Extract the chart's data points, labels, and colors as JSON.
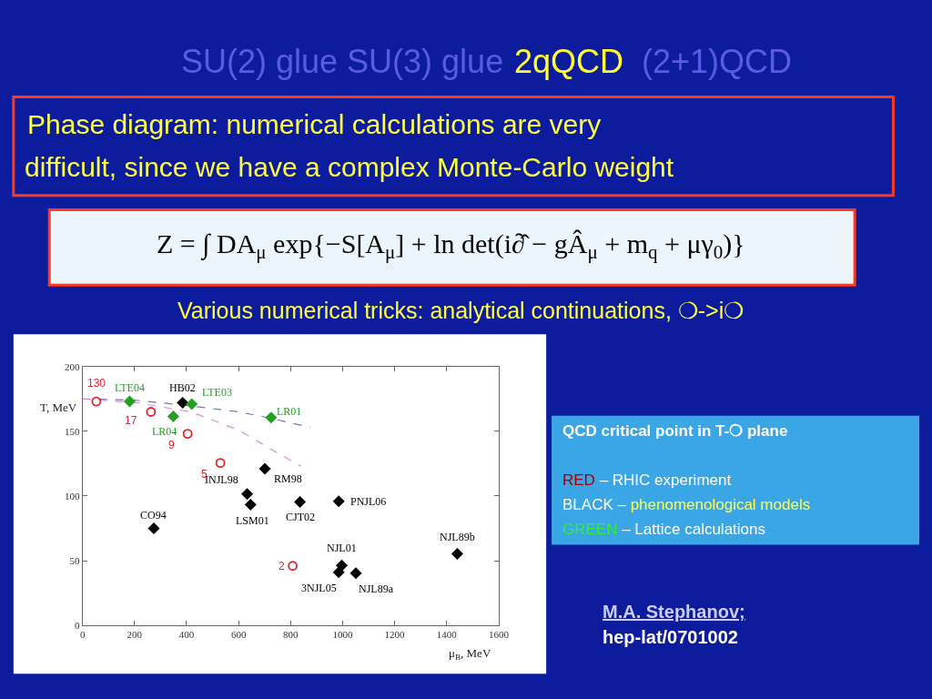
{
  "chart_data": {
    "type": "scatter",
    "xlabel": "μ$_{B}$, MeV",
    "ylabel": "T, MeV",
    "xlim": [
      0,
      1600
    ],
    "xticks": [
      0,
      200,
      400,
      600,
      800,
      1000,
      1200,
      1400,
      1600
    ],
    "ylim": [
      0,
      200
    ],
    "yticks": [
      0,
      50,
      100,
      150,
      200
    ],
    "series": [
      {
        "type": "line",
        "color": "#7070d0",
        "line_style": "dashed",
        "marker": "none",
        "x": [
          0,
          200,
          400,
          600,
          725,
          875
        ],
        "values": [
          175,
          174,
          170,
          165,
          160,
          153
        ]
      },
      {
        "type": "line",
        "color": "#d98ad9",
        "line_style": "dashed",
        "marker": "none",
        "x": [
          0,
          210,
          416,
          600,
          760,
          840
        ],
        "values": [
          175,
          172,
          165,
          151,
          132,
          123
        ]
      },
      {
        "color": "#e8202a",
        "marker": "circle",
        "x": [
          53,
          263,
          404,
          530,
          808
        ],
        "values": [
          173,
          165,
          148,
          125.5,
          46
        ]
      },
      {
        "color": "#000000",
        "marker": "diamond",
        "x": [
          385,
          701,
          633,
          646,
          274,
          836,
          985,
          997,
          985,
          1051,
          1441
        ],
        "values": [
          172,
          121,
          101.6,
          93.3,
          75,
          95.4,
          95.9,
          46.3,
          41,
          40.3,
          55.3
        ]
      },
      {
        "color": "#22a022",
        "marker": "diamond",
        "x": [
          181,
          420,
          349,
          725
        ],
        "values": [
          173,
          171,
          161.5,
          160.6
        ]
      }
    ],
    "annotations": [
      "SU(2) glue SU(3) glue",
      "2qQCD",
      "(2+1)QCD",
      "Phase diagram: numerical calculations are very",
      "difficult, since we have a complex Monte-Carlo weight",
      "Z = ∫ DA$_{μ}$ exp{−S[A$_{μ}$] + ln det(i∂̂ − gÂ$_{μ}$ + m$_{q}$ + μγ$_{0}$)}",
      "Various numerical tricks: analytical continuations, ❍->i❍",
      "QCD critical point in T-❍ plane",
      "RED – RHIC experiment",
      "BLACK – phenomenological models",
      "GREEN – Lattice calculations",
      "M.A. Stephanov;",
      "hep-lat/0701002",
      {
        "text": "130",
        "x": 53,
        "y": 173
      },
      {
        "text": "LTE04",
        "x": 181,
        "y": 173
      },
      {
        "text": "17",
        "x": 263,
        "y": 165
      },
      {
        "text": "HB02",
        "x": 385,
        "y": 172
      },
      {
        "text": "LTE03",
        "x": 420,
        "y": 171
      },
      {
        "text": "LR04",
        "x": 349,
        "y": 161.5
      },
      {
        "text": "9",
        "x": 404,
        "y": 148
      },
      {
        "text": "5",
        "x": 530,
        "y": 125.5
      },
      {
        "text": "RM98",
        "x": 701,
        "y": 121
      },
      {
        "text": "INJL98",
        "x": 633,
        "y": 101.6
      },
      {
        "text": "LSM01",
        "x": 646,
        "y": 93.3
      },
      {
        "text": "CO94",
        "x": 274,
        "y": 75
      },
      {
        "text": "LR01",
        "x": 725,
        "y": 160.6
      },
      {
        "text": "CJT02",
        "x": 836,
        "y": 95.4
      },
      {
        "text": "PNJL06",
        "x": 985,
        "y": 95.9
      },
      {
        "text": "NJL01",
        "x": 997,
        "y": 46.3
      },
      {
        "text": "3NJL05",
        "x": 985,
        "y": 41
      },
      {
        "text": "NJL89a",
        "x": 1051,
        "y": 40.3
      },
      {
        "text": "NJL89b",
        "x": 1441,
        "y": 55.3
      },
      {
        "text": "2",
        "x": 808,
        "y": 46
      }
    ]
  }
}
